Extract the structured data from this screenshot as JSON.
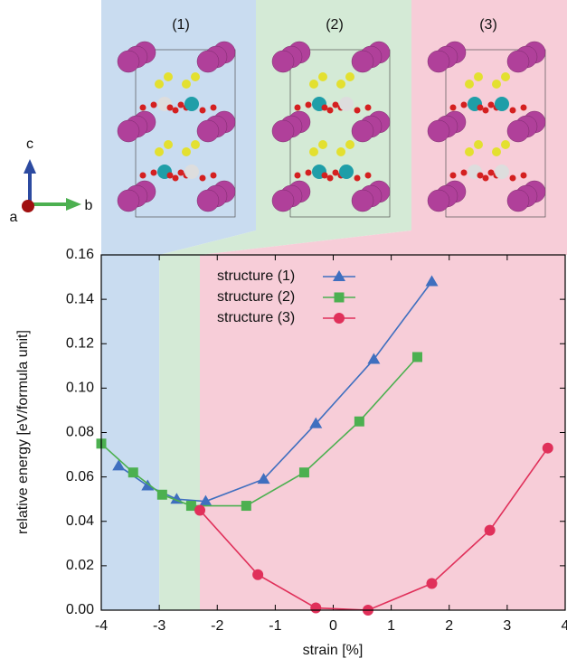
{
  "structures": {
    "panel_labels": [
      "(1)",
      "(2)",
      "(3)"
    ],
    "axis_labels": [
      "c",
      "a",
      "b"
    ]
  },
  "chart_data": {
    "type": "line",
    "xlabel": "strain [%]",
    "ylabel": "relative energy [eV/formula unit]",
    "xlim": [
      -4,
      4
    ],
    "xticks": [
      -4,
      -3,
      -2,
      -1,
      0,
      1,
      2,
      3,
      4
    ],
    "ylim": [
      0,
      0.16
    ],
    "yticks": [
      {
        "value": 0,
        "label": "0.00"
      },
      {
        "value": 0.02,
        "label": "0.02"
      },
      {
        "value": 0.04,
        "label": "0.04"
      },
      {
        "value": 0.06,
        "label": "0.06"
      },
      {
        "value": 0.08,
        "label": "0.08"
      },
      {
        "value": 0.1,
        "label": "0.10"
      },
      {
        "value": 0.12,
        "label": "0.12"
      },
      {
        "value": 0.14,
        "label": "0.14"
      },
      {
        "value": 0.16,
        "label": "0.16"
      }
    ],
    "regions": [
      {
        "from": -4,
        "to": -3,
        "color": "#c9dcf0"
      },
      {
        "from": -3,
        "to": -2.3,
        "color": "#d4ead6"
      },
      {
        "from": -2.3,
        "to": 4,
        "color": "#f7cdd8"
      }
    ],
    "legend": "upper center",
    "series": [
      {
        "name": "structure (1)",
        "color": "#3f6fbf",
        "marker": "triangle",
        "x": [
          -3.7,
          -3.2,
          -2.7,
          -2.2,
          -1.2,
          -0.3,
          0.7,
          1.7
        ],
        "values": [
          0.065,
          0.056,
          0.05,
          0.049,
          0.059,
          0.084,
          0.113,
          0.148
        ]
      },
      {
        "name": "structure (2)",
        "color": "#4cb050",
        "marker": "square",
        "x": [
          -4.0,
          -3.45,
          -2.95,
          -2.45,
          -1.5,
          -0.5,
          0.45,
          1.45
        ],
        "values": [
          0.075,
          0.062,
          0.052,
          0.047,
          0.047,
          0.062,
          0.085,
          0.114
        ]
      },
      {
        "name": "structure (3)",
        "color": "#e0305a",
        "marker": "circle",
        "x": [
          -2.3,
          -1.3,
          -0.3,
          0.6,
          1.7,
          2.7,
          3.7
        ],
        "values": [
          0.045,
          0.016,
          0.001,
          0.0,
          0.012,
          0.036,
          0.073
        ]
      }
    ]
  }
}
